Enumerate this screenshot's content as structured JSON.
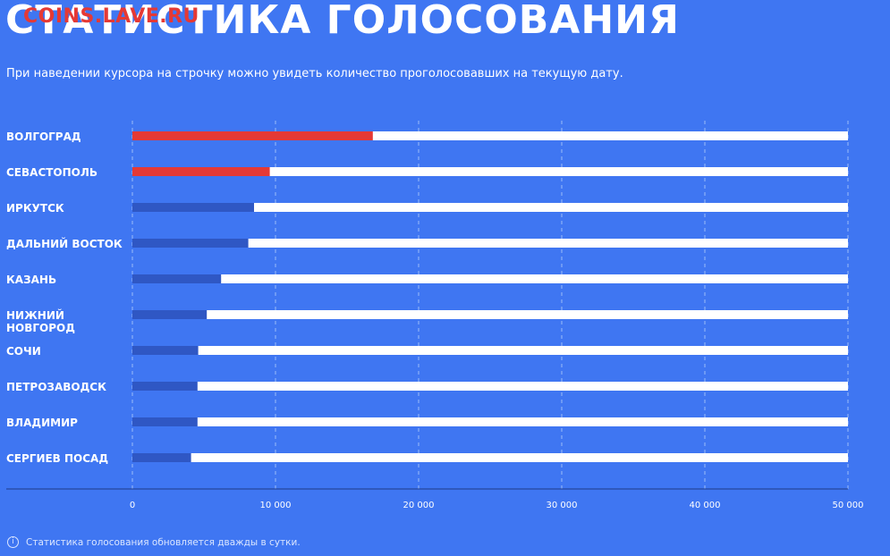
{
  "header": {
    "title": "СТАТИСТИКА ГОЛОСОВАНИЯ",
    "watermark": "COINS.LAVE.RU",
    "subtitle": "При наведении курсора на строчку можно увидеть количество проголосовавших на текущую дату."
  },
  "footer": {
    "note": "Статистика голосования обновляется дважды в сутки."
  },
  "colors": {
    "background": "#3f76f2",
    "track": "#ffffff",
    "leader": "#e53935",
    "bar": "#2f57c4"
  },
  "chart_data": {
    "type": "bar",
    "orientation": "horizontal",
    "categories": [
      "ВОЛГОГРАД",
      "СЕВАСТОПОЛЬ",
      "ИРКУТСК",
      "ДАЛЬНИЙ ВОСТОК",
      "КАЗАНЬ",
      "НИЖНИЙ НОВГОРОД",
      "СОЧИ",
      "ПЕТРОЗАВОДСК",
      "ВЛАДИМИР",
      "СЕРГИЕВ ПОСАД"
    ],
    "values": [
      16800,
      9600,
      8500,
      8100,
      6200,
      5200,
      4600,
      4550,
      4550,
      4100
    ],
    "highlighted": [
      true,
      true,
      false,
      false,
      false,
      false,
      false,
      false,
      false,
      false
    ],
    "xlim": [
      0,
      50000
    ],
    "xticks": [
      0,
      10000,
      20000,
      30000,
      40000,
      50000
    ],
    "xtick_labels": [
      "0",
      "10 000",
      "20 000",
      "30 000",
      "40 000",
      "50 000"
    ],
    "grid": true
  }
}
